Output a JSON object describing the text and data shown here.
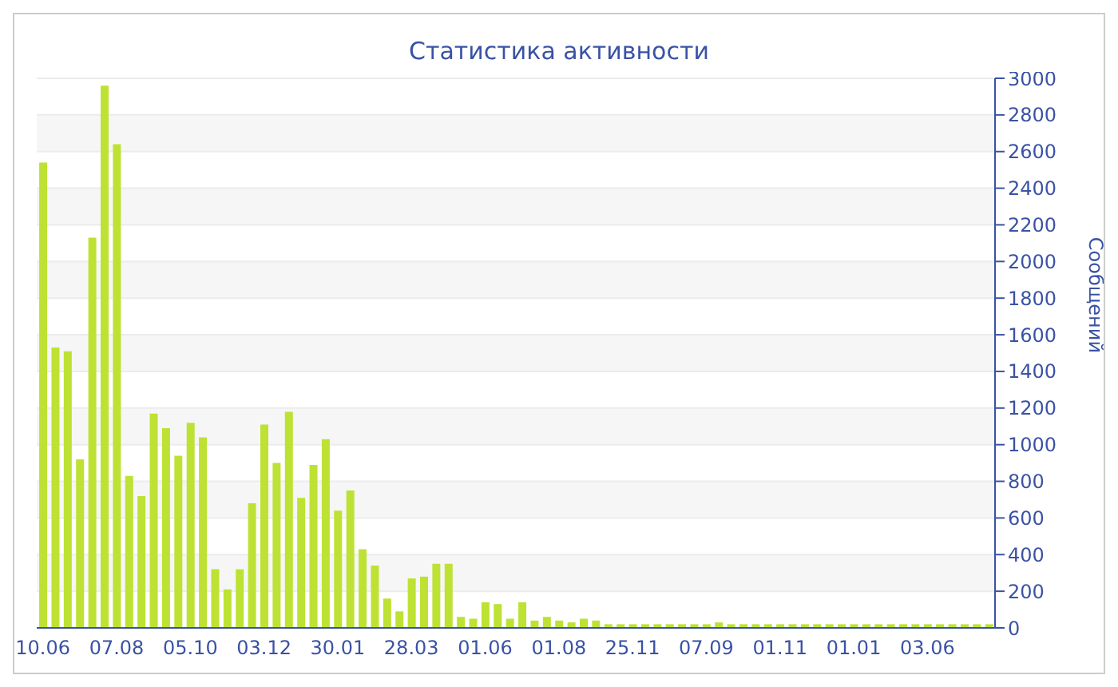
{
  "chart_data": {
    "type": "bar",
    "title": "Статистика активности",
    "ylabel": "Сообщений",
    "categories": [
      "10.06",
      null,
      null,
      null,
      null,
      null,
      "07.08",
      null,
      null,
      null,
      null,
      null,
      "05.10",
      null,
      null,
      null,
      null,
      null,
      "03.12",
      null,
      null,
      null,
      null,
      null,
      "30.01",
      null,
      null,
      null,
      null,
      null,
      "28.03",
      null,
      null,
      null,
      null,
      null,
      "01.06",
      null,
      null,
      null,
      null,
      null,
      "01.08",
      null,
      null,
      null,
      null,
      null,
      "25.11",
      null,
      null,
      null,
      null,
      null,
      "07.09",
      null,
      null,
      null,
      null,
      null,
      "01.11",
      null,
      null,
      null,
      null,
      null,
      "01.01",
      null,
      null,
      null,
      null,
      null,
      "03.06",
      null,
      null,
      null,
      null,
      null
    ],
    "values": [
      2540,
      1530,
      1510,
      920,
      2130,
      2960,
      2640,
      830,
      720,
      1170,
      1090,
      940,
      1120,
      1040,
      320,
      210,
      320,
      680,
      1110,
      900,
      1180,
      710,
      890,
      1030,
      640,
      750,
      430,
      340,
      160,
      90,
      270,
      280,
      350,
      350,
      60,
      50,
      140,
      130,
      50,
      140,
      40,
      60,
      40,
      30,
      50,
      40,
      20,
      20,
      20,
      20,
      20,
      20,
      20,
      20,
      20,
      30,
      20,
      20,
      20,
      20,
      20,
      20,
      20,
      20,
      20,
      20,
      20,
      20,
      20,
      20,
      20,
      20,
      20,
      20,
      20,
      20,
      20,
      20
    ],
    "color": "#bde234",
    "ylim": [
      0,
      3000
    ],
    "yticks": [
      0,
      200,
      400,
      600,
      800,
      1000,
      1200,
      1400,
      1600,
      1800,
      2000,
      2200,
      2400,
      2600,
      2800,
      3000
    ],
    "grid": "y"
  }
}
